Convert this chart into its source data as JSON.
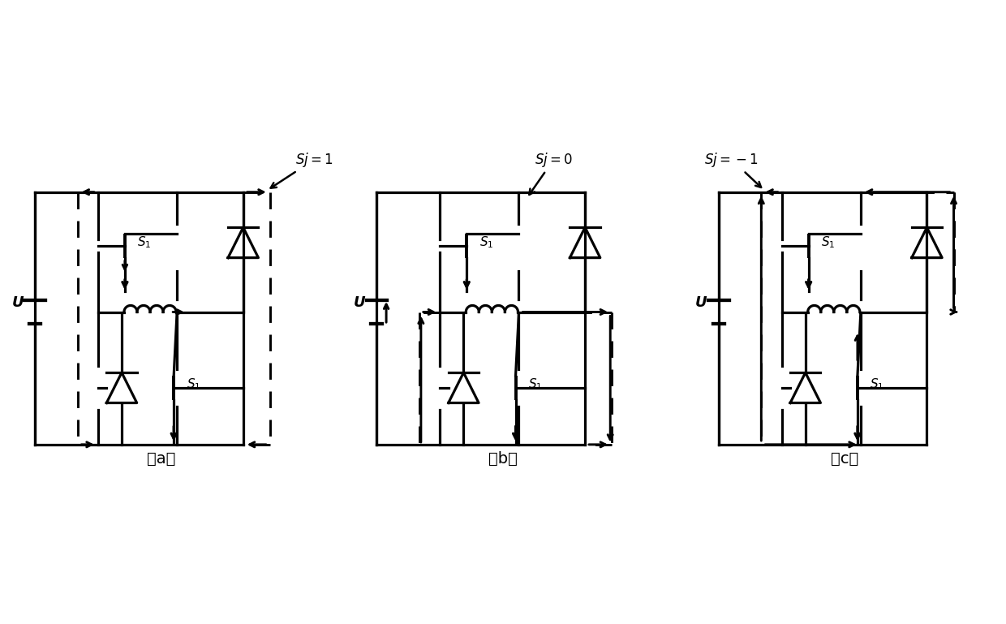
{
  "subfig_labels": [
    "（a）",
    "（b）",
    "（c）"
  ],
  "background_color": "#ffffff",
  "line_color": "#000000",
  "lw": 2.3,
  "dashed_lw": 2.1,
  "fig_width": 12.4,
  "fig_height": 7.69,
  "dpi": 100
}
